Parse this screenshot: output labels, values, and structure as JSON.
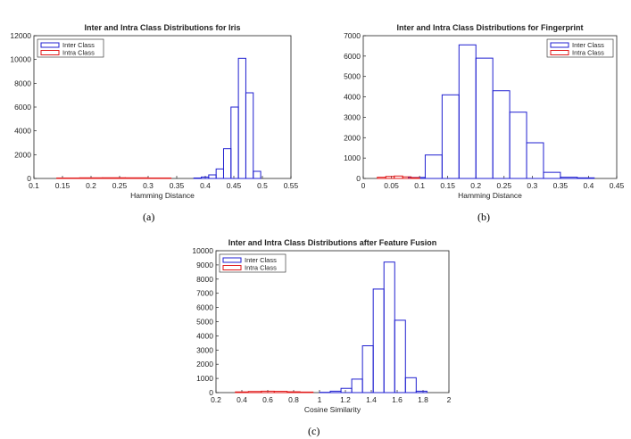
{
  "colors": {
    "inter": "#1f1fd0",
    "intra": "#e01a1a",
    "axis": "#222222"
  },
  "chart_data": [
    {
      "type": "histogram",
      "title": "Inter and Intra Class Distributions for Iris",
      "xlabel": "Hamming Distance",
      "ylabel": "",
      "xlim": [
        0.1,
        0.55
      ],
      "ylim": [
        0,
        12000
      ],
      "xticks": [
        "0.1",
        "0.15",
        "0.2",
        "0.25",
        "0.3",
        "0.35",
        "0.4",
        "0.45",
        "0.5",
        "0.55"
      ],
      "yticks": [
        "0",
        "2000",
        "4000",
        "6000",
        "8000",
        "10000",
        "12000"
      ],
      "legend": {
        "position": "top-left",
        "entries": [
          "Inter Class",
          "Intra Class"
        ]
      },
      "caption": "(a)",
      "series": [
        {
          "name": "Inter Class",
          "bins": [
            [
              0.38,
              0.393,
              40
            ],
            [
              0.393,
              0.406,
              120
            ],
            [
              0.406,
              0.419,
              300
            ],
            [
              0.419,
              0.432,
              800
            ],
            [
              0.432,
              0.445,
              2500
            ],
            [
              0.445,
              0.458,
              6000
            ],
            [
              0.458,
              0.471,
              10100
            ],
            [
              0.471,
              0.484,
              7200
            ],
            [
              0.484,
              0.497,
              600
            ]
          ]
        },
        {
          "name": "Intra Class",
          "bins": [
            [
              0.14,
              0.18,
              40
            ],
            [
              0.18,
              0.22,
              55
            ],
            [
              0.22,
              0.26,
              60
            ],
            [
              0.26,
              0.3,
              55
            ],
            [
              0.3,
              0.34,
              40
            ]
          ]
        }
      ]
    },
    {
      "type": "histogram",
      "title": "Inter and Intra Class Distributions for Fingerprint",
      "xlabel": "Hamming Distance",
      "ylabel": "",
      "xlim": [
        0,
        0.45
      ],
      "ylim": [
        0,
        7000
      ],
      "xticks": [
        "0",
        "0.05",
        "0.1",
        "0.15",
        "0.2",
        "0.25",
        "0.3",
        "0.35",
        "0.4",
        "0.45"
      ],
      "yticks": [
        "0",
        "1000",
        "2000",
        "3000",
        "4000",
        "5000",
        "6000",
        "7000"
      ],
      "legend": {
        "position": "top-right",
        "entries": [
          "Inter Class",
          "Intra Class"
        ]
      },
      "caption": "(b)",
      "series": [
        {
          "name": "Inter Class",
          "bins": [
            [
              0.08,
              0.11,
              50
            ],
            [
              0.11,
              0.14,
              1150
            ],
            [
              0.14,
              0.17,
              4100
            ],
            [
              0.17,
              0.2,
              6550
            ],
            [
              0.2,
              0.23,
              5900
            ],
            [
              0.23,
              0.26,
              4300
            ],
            [
              0.26,
              0.29,
              3250
            ],
            [
              0.29,
              0.32,
              1750
            ],
            [
              0.32,
              0.35,
              300
            ],
            [
              0.35,
              0.38,
              60
            ],
            [
              0.38,
              0.41,
              30
            ]
          ]
        },
        {
          "name": "Intra Class",
          "bins": [
            [
              0.025,
              0.04,
              60
            ],
            [
              0.04,
              0.055,
              100
            ],
            [
              0.055,
              0.07,
              120
            ],
            [
              0.07,
              0.085,
              80
            ],
            [
              0.085,
              0.1,
              40
            ]
          ]
        }
      ]
    },
    {
      "type": "histogram",
      "title": "Inter and Intra Class Distributions after Feature Fusion",
      "xlabel": "Cosine Similarity",
      "ylabel": "",
      "xlim": [
        0.2,
        2
      ],
      "ylim": [
        0,
        10000
      ],
      "xticks": [
        "0.2",
        "0.4",
        "0.6",
        "0.8",
        "1",
        "1.2",
        "1.4",
        "1.6",
        "1.8",
        "2"
      ],
      "yticks": [
        "0",
        "1000",
        "2000",
        "3000",
        "4000",
        "5000",
        "6000",
        "7000",
        "8000",
        "9000",
        "10000"
      ],
      "legend": {
        "position": "top-left",
        "entries": [
          "Inter Class",
          "Intra Class"
        ]
      },
      "caption": "(c)",
      "series": [
        {
          "name": "Inter Class",
          "bins": [
            [
              1.0,
              1.083,
              20
            ],
            [
              1.083,
              1.166,
              100
            ],
            [
              1.166,
              1.249,
              300
            ],
            [
              1.249,
              1.332,
              950
            ],
            [
              1.332,
              1.415,
              3300
            ],
            [
              1.415,
              1.498,
              7300
            ],
            [
              1.498,
              1.581,
              9200
            ],
            [
              1.581,
              1.664,
              5100
            ],
            [
              1.664,
              1.747,
              1050
            ],
            [
              1.747,
              1.83,
              100
            ]
          ]
        },
        {
          "name": "Intra Class",
          "bins": [
            [
              0.35,
              0.45,
              50
            ],
            [
              0.45,
              0.55,
              80
            ],
            [
              0.55,
              0.65,
              100
            ],
            [
              0.65,
              0.75,
              90
            ],
            [
              0.75,
              0.85,
              60
            ],
            [
              0.85,
              0.95,
              40
            ]
          ]
        }
      ]
    }
  ]
}
